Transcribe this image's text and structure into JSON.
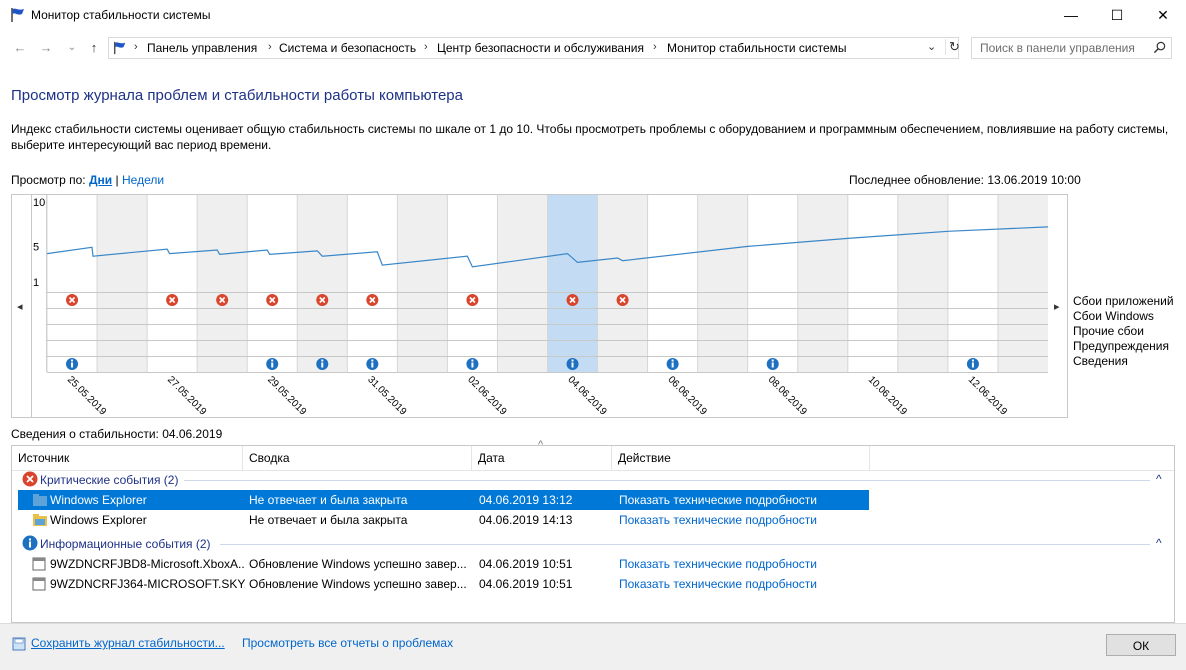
{
  "window": {
    "title": "Монитор стабильности системы",
    "minimize": "—",
    "maximize": "☐",
    "close": "✕"
  },
  "nav": {
    "back": "←",
    "forward": "→",
    "dropdown": "⌄",
    "up": "↑",
    "breadcrumbs": [
      "Панель управления",
      "Система и безопасность",
      "Центр безопасности и обслуживания",
      "Монитор стабильности системы"
    ],
    "crumb_sep": "›",
    "address_dropdown": "⌄",
    "refresh": "↻",
    "search_placeholder": "Поиск в панели управления"
  },
  "heading": "Просмотр журнала проблем и стабильности работы компьютера",
  "description": "Индекс стабильности системы оценивает общую стабильность системы по шкале от 1 до 10. Чтобы просмотреть проблемы с оборудованием и программным обеспечением, повлиявшие на работу системы, выберите интересующий вас период времени.",
  "view_by": {
    "label": "Просмотр по:",
    "days": "Дни",
    "sep": "|",
    "weeks": "Недели"
  },
  "last_update": "Последнее обновление: 13.06.2019 10:00",
  "chart_data": {
    "type": "line",
    "y_ticks": [
      "10",
      "5",
      "1"
    ],
    "ylim": [
      1,
      10
    ],
    "x_labels": [
      "25.05.2019",
      "27.05.2019",
      "29.05.2019",
      "31.05.2019",
      "02.06.2019",
      "04.06.2019",
      "06.06.2019",
      "08.06.2019",
      "10.06.2019",
      "12.06.2019"
    ],
    "columns": 20,
    "selected_column": 10,
    "shaded_columns": [
      1,
      3,
      5,
      7,
      9,
      11,
      13,
      15,
      17,
      19
    ],
    "stability_points": [
      [
        0,
        4.2
      ],
      [
        0.9,
        4.9
      ],
      [
        0.92,
        3.9
      ],
      [
        2.4,
        4.7
      ],
      [
        2.45,
        4.2
      ],
      [
        3.4,
        4.6
      ],
      [
        3.45,
        4.1
      ],
      [
        4.4,
        4.6
      ],
      [
        4.45,
        4.1
      ],
      [
        5.4,
        4.5
      ],
      [
        5.5,
        3.9
      ],
      [
        6.6,
        4.4
      ],
      [
        6.7,
        2.9
      ],
      [
        8.4,
        3.9
      ],
      [
        8.5,
        2.7
      ],
      [
        10.4,
        4.2
      ],
      [
        10.6,
        3.2
      ],
      [
        11.4,
        3.7
      ],
      [
        11.5,
        3.4
      ],
      [
        14,
        5.0
      ],
      [
        16,
        5.9
      ],
      [
        18,
        6.7
      ],
      [
        20,
        7.2
      ]
    ],
    "row_labels": [
      "Сбои приложений",
      "Сбои Windows",
      "Прочие сбои",
      "Предупреждения",
      "Сведения"
    ],
    "app_failure_columns": [
      0.5,
      2.5,
      3.5,
      4.5,
      5.5,
      6.5,
      8.5,
      10.5,
      11.5
    ],
    "info_columns": [
      0.5,
      4.5,
      5.5,
      6.5,
      8.5,
      10.5,
      12.5,
      14.5,
      18.5
    ],
    "scroll_left": "◂",
    "scroll_right": "▸"
  },
  "details": {
    "label": "Сведения о стабильности: 04.06.2019",
    "columns": [
      "Источник",
      "Сводка",
      "Дата",
      "Действие"
    ],
    "sort_indicator": "^",
    "groups": [
      {
        "title": "Критические события (2)",
        "collapse": "^",
        "rows": [
          {
            "source": "Windows Explorer",
            "summary": "Не отвечает и была закрыта",
            "date": "04.06.2019 13:12",
            "action": "Показать технические подробности",
            "selected": true
          },
          {
            "source": "Windows Explorer",
            "summary": "Не отвечает и была закрыта",
            "date": "04.06.2019 14:13",
            "action": "Показать технические подробности",
            "selected": false
          }
        ]
      },
      {
        "title": "Информационные события (2)",
        "collapse": "^",
        "rows": [
          {
            "source": "9WZDNCRFJBD8-Microsoft.XboxA...",
            "summary": "Обновление Windows успешно завер...",
            "date": "04.06.2019 10:51",
            "action": "Показать технические подробности",
            "selected": false
          },
          {
            "source": "9WZDNCRFJ364-MICROSOFT.SKY...",
            "summary": "Обновление Windows успешно завер...",
            "date": "04.06.2019 10:51",
            "action": "Показать технические подробности",
            "selected": false
          }
        ]
      }
    ]
  },
  "footer": {
    "save_link": "Сохранить журнал стабильности...",
    "view_all_link": "Просмотреть все отчеты о проблемах",
    "ok": "ОК"
  },
  "colors": {
    "heading": "#1e3287",
    "link": "#0066cc",
    "selection": "#0078d7",
    "chart_line": "#3a87c8",
    "error": "#d9442d",
    "info": "#1e70c1"
  }
}
